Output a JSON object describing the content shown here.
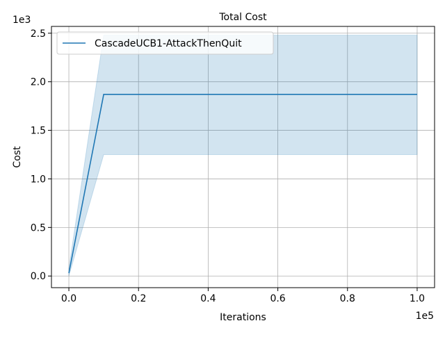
{
  "chart_data": {
    "type": "line",
    "title": "Total Cost",
    "xlabel": "Iterations",
    "ylabel": "Cost",
    "x_multiplier_label": "1e5",
    "y_multiplier_label": "1e3",
    "xlim": [
      -5000,
      105000
    ],
    "ylim": [
      -120,
      2570
    ],
    "x_ticks": [
      0,
      20000,
      40000,
      60000,
      80000,
      100000
    ],
    "x_tick_labels": [
      "0.0",
      "0.2",
      "0.4",
      "0.6",
      "0.8",
      "1.0"
    ],
    "y_ticks": [
      0,
      500,
      1000,
      1500,
      2000,
      2500
    ],
    "y_tick_labels": [
      "0.0",
      "0.5",
      "1.0",
      "1.5",
      "2.0",
      "2.5"
    ],
    "grid": true,
    "legend_position": "upper left",
    "series": [
      {
        "name": "CascadeUCB1-AttackThenQuit",
        "color": "#1f77b4",
        "band_color": "#1f77b4",
        "band_opacity": 0.2,
        "x": [
          0,
          10000,
          100000
        ],
        "y": [
          30,
          1870,
          1870
        ],
        "band_upper": [
          80,
          2480,
          2480
        ],
        "band_lower": [
          0,
          1250,
          1250
        ]
      }
    ]
  }
}
